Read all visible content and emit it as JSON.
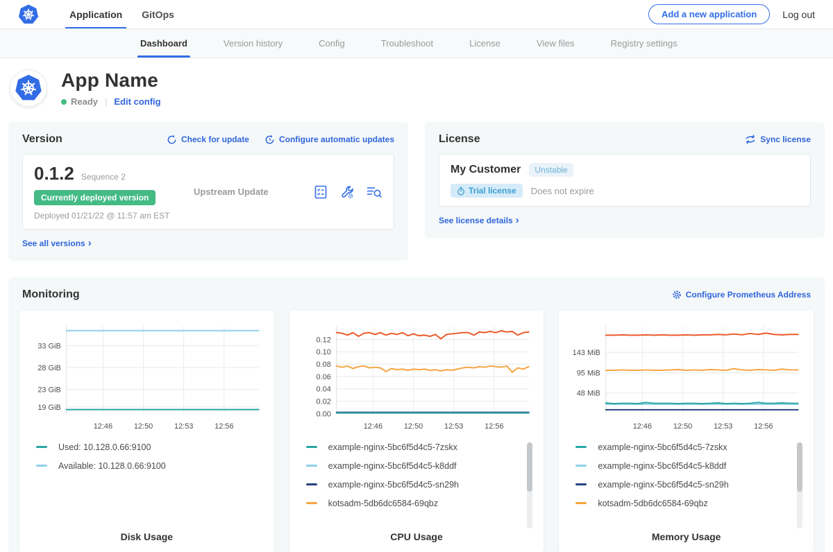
{
  "colors": {
    "accent_blue": "#326de6",
    "link_blue": "#3065dc",
    "green": "#44bb85",
    "panel_bg": "#f4f8f9",
    "teal": "#29a6a3",
    "light_blue": "#8fd0ea",
    "navy": "#25437f",
    "orange": "#f7a440",
    "red_orange": "#ec5a2a"
  },
  "topnav": {
    "tabs": [
      {
        "label": "Application"
      },
      {
        "label": "GitOps"
      }
    ],
    "add_app_button": "Add a new application",
    "logout": "Log out"
  },
  "subnav": {
    "tabs": [
      {
        "label": "Dashboard"
      },
      {
        "label": "Version history"
      },
      {
        "label": "Config"
      },
      {
        "label": "Troubleshoot"
      },
      {
        "label": "License"
      },
      {
        "label": "View files"
      },
      {
        "label": "Registry settings"
      }
    ]
  },
  "app_header": {
    "name": "App Name",
    "status": "Ready",
    "edit_config": "Edit config"
  },
  "version_card": {
    "title": "Version",
    "check_for_update": "Check for update",
    "configure_auto_updates": "Configure automatic updates",
    "version": "0.1.2",
    "sequence": "Sequence 2",
    "deployed_badge": "Currently deployed version",
    "deployed_at": "Deployed 01/21/22 @ 11:57 am EST",
    "update_type": "Upstream Update",
    "see_all_versions": "See all versions",
    "chevron": "›"
  },
  "license_card": {
    "title": "License",
    "sync_license": "Sync license",
    "customer": "My Customer",
    "channel_badge": "Unstable",
    "type_badge": "Trial license",
    "expiry": "Does not expire",
    "see_license_details": "See license details",
    "chevron": "›"
  },
  "monitoring": {
    "title": "Monitoring",
    "configure_prometheus": "Configure Prometheus Address"
  },
  "chart_data": [
    {
      "type": "line",
      "title": "Disk Usage",
      "x_ticks": [
        "12:46",
        "12:50",
        "12:53",
        "12:56"
      ],
      "y_tick_labels": [
        "19 GiB",
        "23 GiB",
        "28 GiB",
        "33 GiB"
      ],
      "y_ticks": [
        19,
        23,
        28,
        33
      ],
      "ylim": [
        17.5,
        37.5
      ],
      "series": [
        {
          "name": "Available: 10.128.0.66:9100",
          "color": "#8fd0ea",
          "values": [
            36.4,
            36.4
          ]
        },
        {
          "name": "Used: 10.128.0.66:9100",
          "color": "#29a6a3",
          "values": [
            18.4,
            18.4
          ]
        }
      ],
      "legend": [
        {
          "label": "Used: 10.128.0.66:9100",
          "color": "#29a6a3"
        },
        {
          "label": "Available: 10.128.0.66:9100",
          "color": "#8fd0ea"
        }
      ],
      "legend_scrollbar": false
    },
    {
      "type": "line",
      "title": "CPU Usage",
      "x_ticks": [
        "12:46",
        "12:50",
        "12:53",
        "12:56"
      ],
      "y_tick_labels": [
        "0.00",
        "0.02",
        "0.04",
        "0.06",
        "0.08",
        "0.10",
        "0.12"
      ],
      "y_ticks": [
        0,
        0.02,
        0.04,
        0.06,
        0.08,
        0.1,
        0.12
      ],
      "ylim": [
        0,
        0.142
      ],
      "series": [
        {
          "name": "example-nginx-5bc6f5d4c5-k8ddf",
          "color": "#8fd0ea",
          "values": [
            0.0015,
            0.0015
          ]
        },
        {
          "name": "example-nginx-5bc6f5d4c5-sn29h",
          "color": "#25437f",
          "values": [
            0.002,
            0.002
          ]
        },
        {
          "name": "example-nginx-5bc6f5d4c5-7zskx",
          "color": "#29a6a3",
          "values": [
            0.001,
            0.001
          ]
        },
        {
          "name": "kotsadm-5db6dc6584-69qbz",
          "color": "#f7a440",
          "values": [
            0.077,
            0.075,
            0.077,
            0.073,
            0.076,
            0.077,
            0.074,
            0.075,
            0.074,
            0.068,
            0.073,
            0.071,
            0.072,
            0.07,
            0.072,
            0.071,
            0.072,
            0.07,
            0.071,
            0.069,
            0.071,
            0.07,
            0.072,
            0.074,
            0.075,
            0.074,
            0.076,
            0.075,
            0.077,
            0.076,
            0.075,
            0.077,
            0.067,
            0.074,
            0.072,
            0.076
          ]
        },
        {
          "color": "#ec5a2a",
          "values": [
            0.131,
            0.13,
            0.127,
            0.131,
            0.125,
            0.13,
            0.131,
            0.128,
            0.131,
            0.127,
            0.13,
            0.128,
            0.131,
            0.126,
            0.129,
            0.126,
            0.127,
            0.125,
            0.128,
            0.121,
            0.128,
            0.129,
            0.13,
            0.131,
            0.131,
            0.127,
            0.132,
            0.131,
            0.133,
            0.131,
            0.134,
            0.132,
            0.133,
            0.127,
            0.131,
            0.132
          ]
        }
      ],
      "legend": [
        {
          "label": "example-nginx-5bc6f5d4c5-7zskx",
          "color": "#29a6a3"
        },
        {
          "label": "example-nginx-5bc6f5d4c5-k8ddf",
          "color": "#8fd0ea"
        },
        {
          "label": "example-nginx-5bc6f5d4c5-sn29h",
          "color": "#25437f"
        },
        {
          "label": "kotsadm-5db6dc6584-69qbz",
          "color": "#f7a440"
        }
      ],
      "legend_scrollbar": true
    },
    {
      "type": "line",
      "title": "Memory Usage",
      "x_ticks": [
        "12:46",
        "12:50",
        "12:53",
        "12:56"
      ],
      "y_tick_labels": [
        "48 MiB",
        "95 MiB",
        "143 MiB"
      ],
      "y_ticks": [
        48,
        95,
        143
      ],
      "ylim": [
        0,
        205
      ],
      "series": [
        {
          "name": "example-nginx-5bc6f5d4c5-k8ddf",
          "color": "#8fd0ea",
          "values": [
            22,
            22
          ]
        },
        {
          "name": "example-nginx-5bc6f5d4c5-sn29h",
          "color": "#25437f",
          "values": [
            9,
            9
          ]
        },
        {
          "name": "example-nginx-5bc6f5d4c5-7zskx",
          "color": "#29a6a3",
          "values": [
            25,
            23,
            24,
            24,
            23,
            26,
            24,
            24,
            24,
            23,
            24,
            24,
            23,
            24,
            25,
            23,
            24,
            23,
            24,
            26,
            24,
            24,
            25,
            24,
            24
          ]
        },
        {
          "name": "kotsadm-5db6dc6584-69qbz",
          "color": "#f7a440",
          "values": [
            101,
            101,
            102,
            101,
            101,
            102,
            101,
            101,
            102,
            103,
            101,
            102,
            101,
            103,
            102,
            101,
            105,
            102,
            101,
            103,
            102,
            101,
            104,
            102,
            102
          ]
        },
        {
          "color": "#ec5a2a",
          "values": [
            183,
            183,
            184,
            183,
            183,
            184,
            183,
            184,
            183,
            183,
            184,
            183,
            184,
            184,
            185,
            184,
            186,
            184,
            187,
            185,
            188,
            185,
            184,
            185,
            185
          ]
        }
      ],
      "legend": [
        {
          "label": "example-nginx-5bc6f5d4c5-7zskx",
          "color": "#29a6a3"
        },
        {
          "label": "example-nginx-5bc6f5d4c5-k8ddf",
          "color": "#8fd0ea"
        },
        {
          "label": "example-nginx-5bc6f5d4c5-sn29h",
          "color": "#25437f"
        },
        {
          "label": "kotsadm-5db6dc6584-69qbz",
          "color": "#f7a440"
        }
      ],
      "legend_scrollbar": true
    }
  ]
}
